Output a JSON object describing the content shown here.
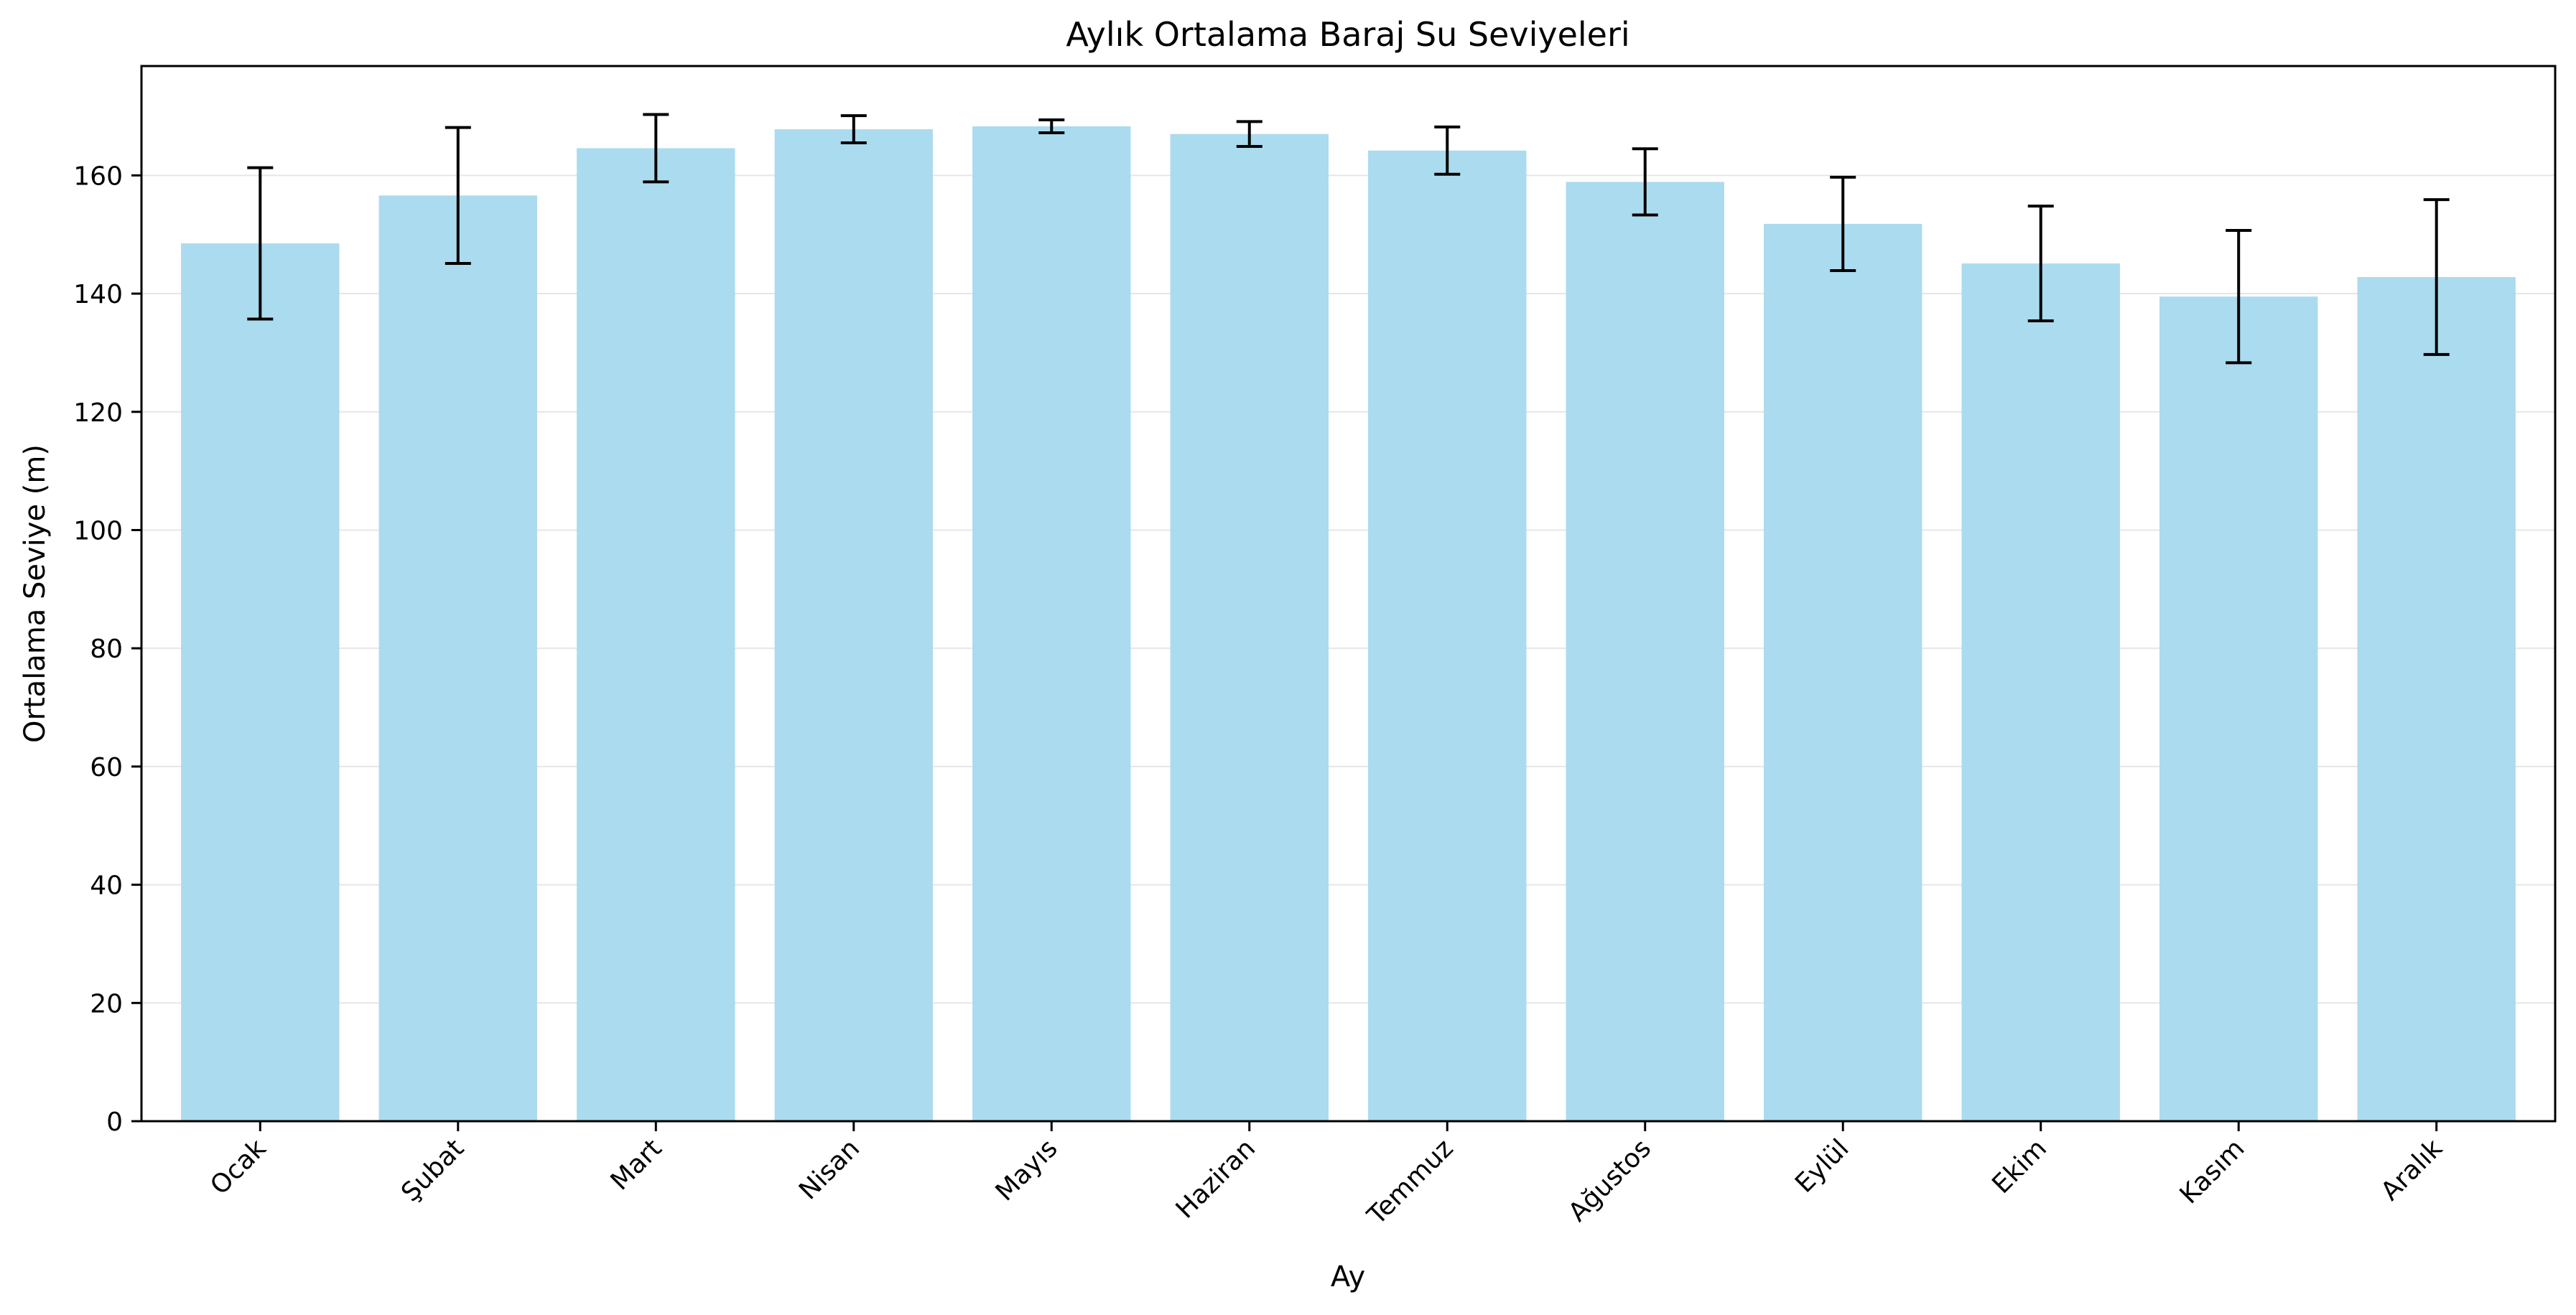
{
  "chart_data": {
    "type": "bar",
    "title": "Aylık Ortalama Baraj Su Seviyeleri",
    "xlabel": "Ay",
    "ylabel": "Ortalama Seviye (m)",
    "categories": [
      "Ocak",
      "Şubat",
      "Mart",
      "Nisan",
      "Mayıs",
      "Haziran",
      "Temmuz",
      "Ağustos",
      "Eylül",
      "Ekim",
      "Kasım",
      "Aralık"
    ],
    "values": [
      148.5,
      156.6,
      164.6,
      167.8,
      168.3,
      167.0,
      164.2,
      158.9,
      151.8,
      145.1,
      139.5,
      142.8
    ],
    "error": [
      12.8,
      11.5,
      5.7,
      2.3,
      1.1,
      2.1,
      4.0,
      5.6,
      7.9,
      9.7,
      11.2,
      13.1
    ],
    "ylim": [
      0,
      178.5
    ],
    "yticks": [
      0,
      20,
      40,
      60,
      80,
      100,
      120,
      140,
      160
    ],
    "grid": "y",
    "colors": {
      "bar": "#ABDBEE",
      "error": "#000000",
      "grid": "#E6E6E6",
      "axis": "#000000"
    }
  }
}
